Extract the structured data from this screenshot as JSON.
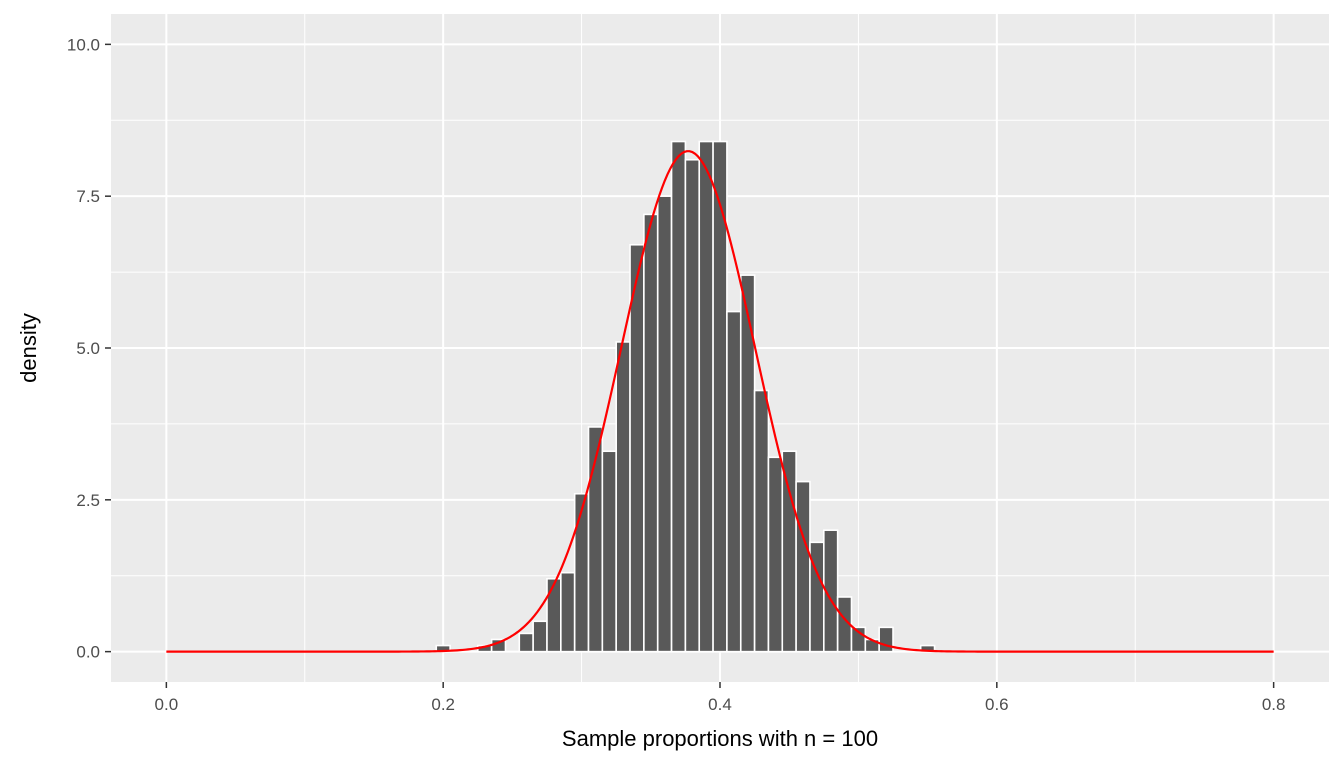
{
  "chart_data": {
    "type": "bar",
    "title": "",
    "xlabel": "Sample proportions with n = 100",
    "ylabel": "density",
    "xlim": [
      -0.04,
      0.84
    ],
    "ylim": [
      -0.5,
      10.5
    ],
    "grid": true,
    "x_ticks": [
      0.0,
      0.2,
      0.4,
      0.6,
      0.8
    ],
    "x_tick_labels": [
      "0.0",
      "0.2",
      "0.4",
      "0.6",
      "0.8"
    ],
    "y_ticks": [
      0,
      2.5,
      5,
      7.5,
      10
    ],
    "y_tick_labels": [
      "0.0",
      "2.5",
      "5.0",
      "7.5",
      "10.0"
    ],
    "x_minor_ticks": [
      0.1,
      0.3,
      0.5,
      0.7
    ],
    "y_minor_ticks": [
      1.25,
      3.75,
      6.25,
      8.75
    ],
    "bin_width": 0.01,
    "bins": [
      {
        "x": 0.2,
        "density": 0.1
      },
      {
        "x": 0.23,
        "density": 0.1
      },
      {
        "x": 0.24,
        "density": 0.2
      },
      {
        "x": 0.26,
        "density": 0.3
      },
      {
        "x": 0.27,
        "density": 0.5
      },
      {
        "x": 0.28,
        "density": 1.2
      },
      {
        "x": 0.29,
        "density": 1.3
      },
      {
        "x": 0.3,
        "density": 2.6
      },
      {
        "x": 0.31,
        "density": 3.7
      },
      {
        "x": 0.32,
        "density": 3.3
      },
      {
        "x": 0.33,
        "density": 5.1
      },
      {
        "x": 0.34,
        "density": 6.7
      },
      {
        "x": 0.35,
        "density": 7.2
      },
      {
        "x": 0.36,
        "density": 7.5
      },
      {
        "x": 0.37,
        "density": 8.4
      },
      {
        "x": 0.38,
        "density": 8.1
      },
      {
        "x": 0.39,
        "density": 8.4
      },
      {
        "x": 0.4,
        "density": 8.4
      },
      {
        "x": 0.41,
        "density": 5.6
      },
      {
        "x": 0.42,
        "density": 6.2
      },
      {
        "x": 0.43,
        "density": 4.3
      },
      {
        "x": 0.44,
        "density": 3.2
      },
      {
        "x": 0.45,
        "density": 3.3
      },
      {
        "x": 0.46,
        "density": 2.8
      },
      {
        "x": 0.47,
        "density": 1.8
      },
      {
        "x": 0.48,
        "density": 2.0
      },
      {
        "x": 0.49,
        "density": 0.9
      },
      {
        "x": 0.5,
        "density": 0.4
      },
      {
        "x": 0.51,
        "density": 0.2
      },
      {
        "x": 0.52,
        "density": 0.4
      },
      {
        "x": 0.55,
        "density": 0.1
      }
    ],
    "curve": {
      "type": "normal-density",
      "mean": 0.377,
      "sd": 0.0484,
      "x_range": [
        0.0,
        0.8
      ],
      "color": "#ff0000"
    },
    "colors": {
      "panel_background": "#ebebeb",
      "grid_line": "#ffffff",
      "bar_fill": "#595959",
      "bar_outline": "#ffffff",
      "curve": "#ff0000"
    }
  }
}
